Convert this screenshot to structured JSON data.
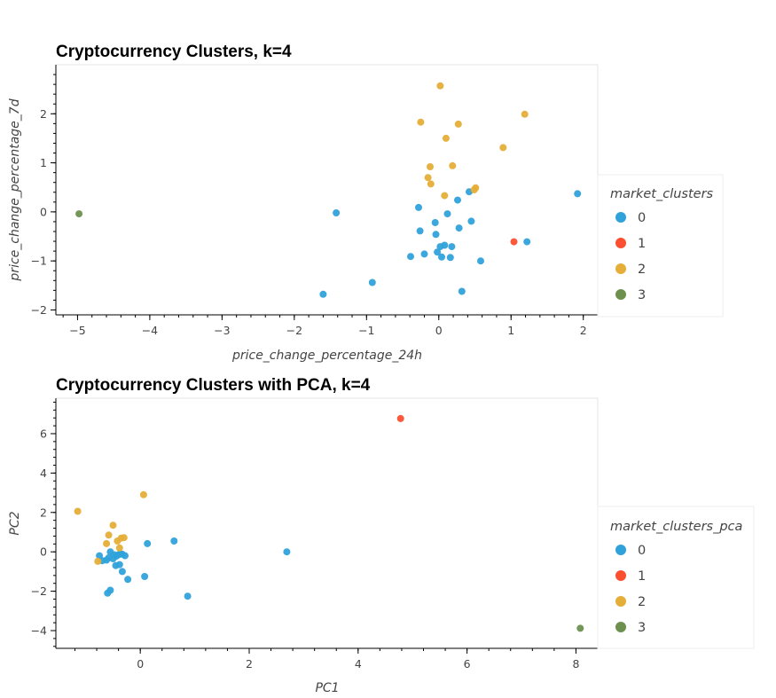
{
  "colors": {
    "cluster_0": "#30a2da",
    "cluster_1": "#fc4f30",
    "cluster_2": "#e5ae38",
    "cluster_3": "#6d904f"
  },
  "chart_data": [
    {
      "type": "scatter",
      "title": "Cryptocurrency Clusters, k=4",
      "xlabel": "price_change_percentage_24h",
      "ylabel": "price_change_percentage_7d",
      "xlim": [
        -5.3,
        2.2
      ],
      "ylim": [
        -2.1,
        3.0
      ],
      "xticks": [
        -5,
        -4,
        -3,
        -2,
        -1,
        0,
        1,
        2
      ],
      "yticks": [
        -2,
        -1,
        0,
        1,
        2
      ],
      "grid": false,
      "legend": {
        "title": "market_clusters",
        "position": "right",
        "entries": [
          "0",
          "1",
          "2",
          "3"
        ]
      },
      "series": [
        {
          "name": "0",
          "color": "#30a2da",
          "points": [
            [
              -1.6,
              -1.68
            ],
            [
              -0.92,
              -1.44
            ],
            [
              -1.42,
              -0.02
            ],
            [
              -0.28,
              0.09
            ],
            [
              -0.26,
              -0.39
            ],
            [
              -0.39,
              -0.91
            ],
            [
              -0.2,
              -0.86
            ],
            [
              -0.05,
              -0.22
            ],
            [
              -0.04,
              -0.46
            ],
            [
              -0.02,
              -0.82
            ],
            [
              0.02,
              -0.71
            ],
            [
              0.04,
              -0.92
            ],
            [
              0.08,
              -0.68
            ],
            [
              0.12,
              -0.04
            ],
            [
              0.16,
              -0.93
            ],
            [
              0.18,
              -0.71
            ],
            [
              0.26,
              0.24
            ],
            [
              0.28,
              -0.33
            ],
            [
              0.32,
              -1.62
            ],
            [
              0.42,
              0.41
            ],
            [
              0.45,
              -0.19
            ],
            [
              0.58,
              -1.0
            ],
            [
              1.22,
              -0.61
            ],
            [
              1.92,
              0.37
            ]
          ]
        },
        {
          "name": "1",
          "color": "#fc4f30",
          "points": [
            [
              1.04,
              -0.61
            ]
          ]
        },
        {
          "name": "2",
          "color": "#e5ae38",
          "points": [
            [
              0.02,
              2.57
            ],
            [
              -0.25,
              1.83
            ],
            [
              0.27,
              1.79
            ],
            [
              1.19,
              1.99
            ],
            [
              0.1,
              1.5
            ],
            [
              0.89,
              1.31
            ],
            [
              -0.12,
              0.92
            ],
            [
              0.19,
              0.94
            ],
            [
              -0.15,
              0.7
            ],
            [
              -0.11,
              0.57
            ],
            [
              0.08,
              0.33
            ],
            [
              0.51,
              0.49
            ],
            [
              0.49,
              0.45
            ]
          ]
        },
        {
          "name": "3",
          "color": "#6d904f",
          "points": [
            [
              -4.98,
              -0.04
            ]
          ]
        }
      ]
    },
    {
      "type": "scatter",
      "title": "Cryptocurrency Clusters with PCA, k=4",
      "xlabel": "PC1",
      "ylabel": "PC2",
      "xlim": [
        -1.55,
        8.4
      ],
      "ylim": [
        -4.9,
        7.8
      ],
      "xticks": [
        0,
        2,
        4,
        6,
        8
      ],
      "yticks": [
        -4,
        -2,
        0,
        2,
        4,
        6
      ],
      "grid": false,
      "legend": {
        "title": "market_clusters_pca",
        "position": "right",
        "entries": [
          "0",
          "1",
          "2",
          "3"
        ]
      },
      "series": [
        {
          "name": "0",
          "color": "#30a2da",
          "points": [
            [
              -0.75,
              -0.2
            ],
            [
              -0.7,
              -0.45
            ],
            [
              -0.62,
              -0.42
            ],
            [
              -0.58,
              -0.3
            ],
            [
              -0.55,
              0.0
            ],
            [
              -0.5,
              -0.35
            ],
            [
              -0.48,
              -0.15
            ],
            [
              -0.44,
              -0.22
            ],
            [
              -0.4,
              -0.15
            ],
            [
              -0.37,
              -0.1
            ],
            [
              -0.33,
              -0.12
            ],
            [
              -0.28,
              -0.2
            ],
            [
              -0.45,
              -0.7
            ],
            [
              -0.38,
              -0.65
            ],
            [
              -0.33,
              -1.0
            ],
            [
              -0.55,
              -1.95
            ],
            [
              -0.6,
              -2.1
            ],
            [
              -0.23,
              -1.4
            ],
            [
              0.08,
              -1.25
            ],
            [
              0.13,
              0.42
            ],
            [
              0.62,
              0.55
            ],
            [
              0.87,
              -2.25
            ],
            [
              2.69,
              0.0
            ]
          ]
        },
        {
          "name": "1",
          "color": "#fc4f30",
          "points": [
            [
              4.78,
              6.77
            ]
          ]
        },
        {
          "name": "2",
          "color": "#e5ae38",
          "points": [
            [
              -1.15,
              2.06
            ],
            [
              0.06,
              2.9
            ],
            [
              -0.5,
              1.35
            ],
            [
              -0.58,
              0.85
            ],
            [
              -0.62,
              0.42
            ],
            [
              -0.42,
              0.55
            ],
            [
              -0.35,
              0.7
            ],
            [
              -0.3,
              0.72
            ],
            [
              -0.38,
              0.2
            ],
            [
              -0.78,
              -0.48
            ]
          ]
        },
        {
          "name": "3",
          "color": "#6d904f",
          "points": [
            [
              8.08,
              -3.88
            ]
          ]
        }
      ]
    }
  ]
}
